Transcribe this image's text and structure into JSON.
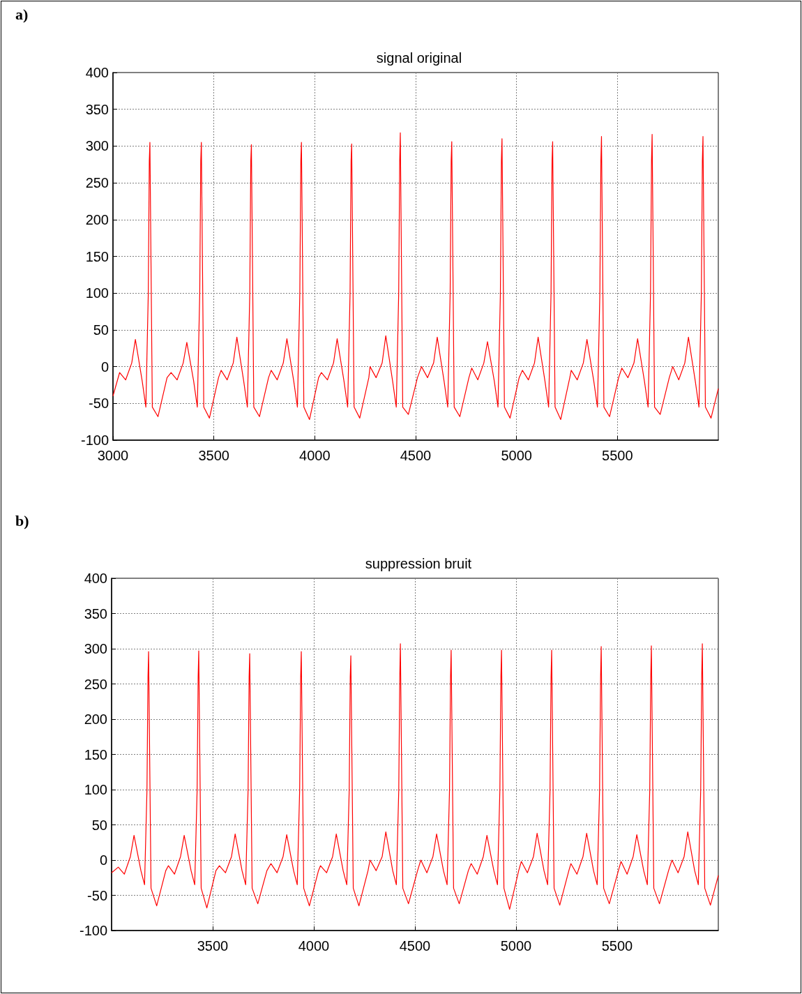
{
  "chart_data": [
    {
      "type": "line",
      "title": "signal original",
      "annotations": [
        "a)"
      ],
      "xlim": [
        3000,
        6000
      ],
      "xticks": [
        3000,
        3500,
        4000,
        4500,
        5000,
        5500
      ],
      "ylim": [
        -100,
        400
      ],
      "yticks": [
        -100,
        -50,
        0,
        50,
        100,
        150,
        200,
        250,
        300,
        350,
        400
      ],
      "grid": true,
      "marker": "none",
      "line_style": "solid",
      "series": [
        {
          "color": "#ff0000",
          "x": [
            3000,
            3033,
            3063,
            3093,
            3111,
            3145,
            3163,
            3175,
            3180,
            3183,
            3195,
            3223,
            3268,
            3288,
            3318,
            3348,
            3366,
            3400,
            3418,
            3430,
            3435,
            3438,
            3450,
            3478,
            3523,
            3536,
            3566,
            3596,
            3614,
            3648,
            3666,
            3678,
            3683,
            3686,
            3698,
            3726,
            3771,
            3784,
            3814,
            3844,
            3862,
            3896,
            3914,
            3926,
            3931,
            3934,
            3946,
            3974,
            4019,
            4033,
            4063,
            4093,
            4111,
            4145,
            4163,
            4175,
            4180,
            4183,
            4195,
            4223,
            4268,
            4274,
            4304,
            4334,
            4352,
            4386,
            4404,
            4416,
            4421,
            4424,
            4436,
            4464,
            4509,
            4529,
            4559,
            4589,
            4607,
            4641,
            4659,
            4671,
            4676,
            4679,
            4691,
            4719,
            4764,
            4778,
            4808,
            4838,
            4856,
            4890,
            4908,
            4920,
            4925,
            4928,
            4940,
            4968,
            5013,
            5029,
            5059,
            5089,
            5107,
            5141,
            5159,
            5171,
            5176,
            5179,
            5191,
            5219,
            5264,
            5271,
            5301,
            5331,
            5349,
            5383,
            5401,
            5413,
            5418,
            5421,
            5433,
            5461,
            5506,
            5522,
            5552,
            5582,
            5600,
            5634,
            5652,
            5664,
            5669,
            5672,
            5684,
            5712,
            5757,
            5774,
            5804,
            5834,
            5852,
            5886,
            5904,
            5916,
            5921,
            5924,
            5936,
            5964,
            6000
          ],
          "values": [
            -40,
            -8,
            -18,
            5,
            37,
            -20,
            -55,
            100,
            280,
            305,
            -55,
            -68,
            -15,
            -8,
            -18,
            5,
            33,
            -20,
            -55,
            100,
            280,
            305,
            -55,
            -70,
            -15,
            -5,
            -18,
            5,
            40,
            -20,
            -55,
            100,
            280,
            302,
            -55,
            -68,
            -15,
            -5,
            -18,
            5,
            38,
            -20,
            -55,
            100,
            280,
            305,
            -55,
            -72,
            -15,
            -8,
            -18,
            5,
            38,
            -20,
            -55,
            100,
            280,
            303,
            -55,
            -70,
            -15,
            0,
            -15,
            5,
            42,
            -20,
            -55,
            100,
            280,
            318,
            -55,
            -65,
            -15,
            0,
            -15,
            5,
            40,
            -20,
            -55,
            100,
            280,
            306,
            -55,
            -68,
            -15,
            -2,
            -18,
            5,
            34,
            -20,
            -55,
            100,
            280,
            310,
            -55,
            -70,
            -15,
            -5,
            -18,
            5,
            40,
            -20,
            -55,
            100,
            280,
            306,
            -55,
            -72,
            -15,
            -5,
            -18,
            5,
            37,
            -20,
            -55,
            100,
            280,
            313,
            -55,
            -68,
            -15,
            -2,
            -15,
            5,
            38,
            -20,
            -55,
            100,
            280,
            316,
            -55,
            -65,
            -15,
            0,
            -18,
            5,
            40,
            -20,
            -55,
            100,
            280,
            313,
            -55,
            -70,
            -30
          ]
        }
      ]
    },
    {
      "type": "line",
      "title": "suppression bruit",
      "annotations": [
        "b)"
      ],
      "xlim": [
        3000,
        6000
      ],
      "xticks": [
        3500,
        4000,
        4500,
        5000,
        5500
      ],
      "ylim": [
        -100,
        400
      ],
      "yticks": [
        -100,
        -50,
        0,
        50,
        100,
        150,
        200,
        250,
        300,
        350,
        400
      ],
      "grid": true,
      "marker": "none",
      "line_style": "solid",
      "series": [
        {
          "color": "#ff0000",
          "x": [
            3000,
            3033,
            3063,
            3093,
            3111,
            3145,
            3163,
            3175,
            3180,
            3183,
            3195,
            3223,
            3268,
            3281,
            3311,
            3341,
            3359,
            3393,
            3411,
            3423,
            3428,
            3431,
            3443,
            3471,
            3516,
            3533,
            3563,
            3593,
            3611,
            3645,
            3663,
            3675,
            3680,
            3683,
            3695,
            3723,
            3768,
            3788,
            3818,
            3848,
            3866,
            3900,
            3918,
            3930,
            3935,
            3938,
            3950,
            3978,
            4023,
            4033,
            4063,
            4093,
            4111,
            4145,
            4163,
            4175,
            4180,
            4183,
            4195,
            4223,
            4268,
            4278,
            4308,
            4338,
            4356,
            4390,
            4408,
            4420,
            4425,
            4428,
            4440,
            4468,
            4513,
            4529,
            4559,
            4589,
            4607,
            4641,
            4659,
            4671,
            4676,
            4679,
            4691,
            4719,
            4764,
            4778,
            4808,
            4838,
            4856,
            4890,
            4908,
            4920,
            4925,
            4928,
            4940,
            4968,
            5013,
            5026,
            5056,
            5086,
            5104,
            5138,
            5156,
            5168,
            5173,
            5176,
            5188,
            5216,
            5261,
            5271,
            5301,
            5331,
            5349,
            5383,
            5401,
            5413,
            5418,
            5421,
            5433,
            5461,
            5506,
            5519,
            5549,
            5579,
            5597,
            5631,
            5649,
            5661,
            5666,
            5669,
            5681,
            5709,
            5754,
            5771,
            5801,
            5831,
            5849,
            5883,
            5901,
            5913,
            5918,
            5921,
            5933,
            5961,
            6000
          ],
          "values": [
            -18,
            -10,
            -20,
            5,
            35,
            -15,
            -35,
            100,
            260,
            296,
            -40,
            -65,
            -15,
            -8,
            -20,
            5,
            35,
            -15,
            -35,
            100,
            260,
            297,
            -40,
            -68,
            -15,
            -8,
            -18,
            5,
            37,
            -15,
            -35,
            100,
            260,
            293,
            -40,
            -62,
            -15,
            -5,
            -18,
            5,
            36,
            -15,
            -35,
            100,
            260,
            296,
            -40,
            -65,
            -15,
            -8,
            -18,
            5,
            37,
            -15,
            -35,
            100,
            260,
            290,
            -40,
            -65,
            -15,
            0,
            -15,
            5,
            40,
            -15,
            -35,
            100,
            260,
            307,
            -40,
            -62,
            -15,
            0,
            -18,
            5,
            37,
            -15,
            -35,
            100,
            260,
            298,
            -40,
            -62,
            -15,
            -5,
            -20,
            5,
            35,
            -15,
            -35,
            100,
            260,
            298,
            -40,
            -70,
            -15,
            -2,
            -18,
            5,
            38,
            -15,
            -35,
            100,
            260,
            298,
            -40,
            -64,
            -15,
            -5,
            -20,
            5,
            38,
            -15,
            -35,
            100,
            260,
            303,
            -40,
            -62,
            -15,
            -2,
            -20,
            5,
            36,
            -15,
            -35,
            100,
            260,
            304,
            -40,
            -62,
            -15,
            0,
            -18,
            5,
            40,
            -15,
            -35,
            100,
            260,
            307,
            -40,
            -64,
            -22
          ]
        }
      ]
    }
  ]
}
